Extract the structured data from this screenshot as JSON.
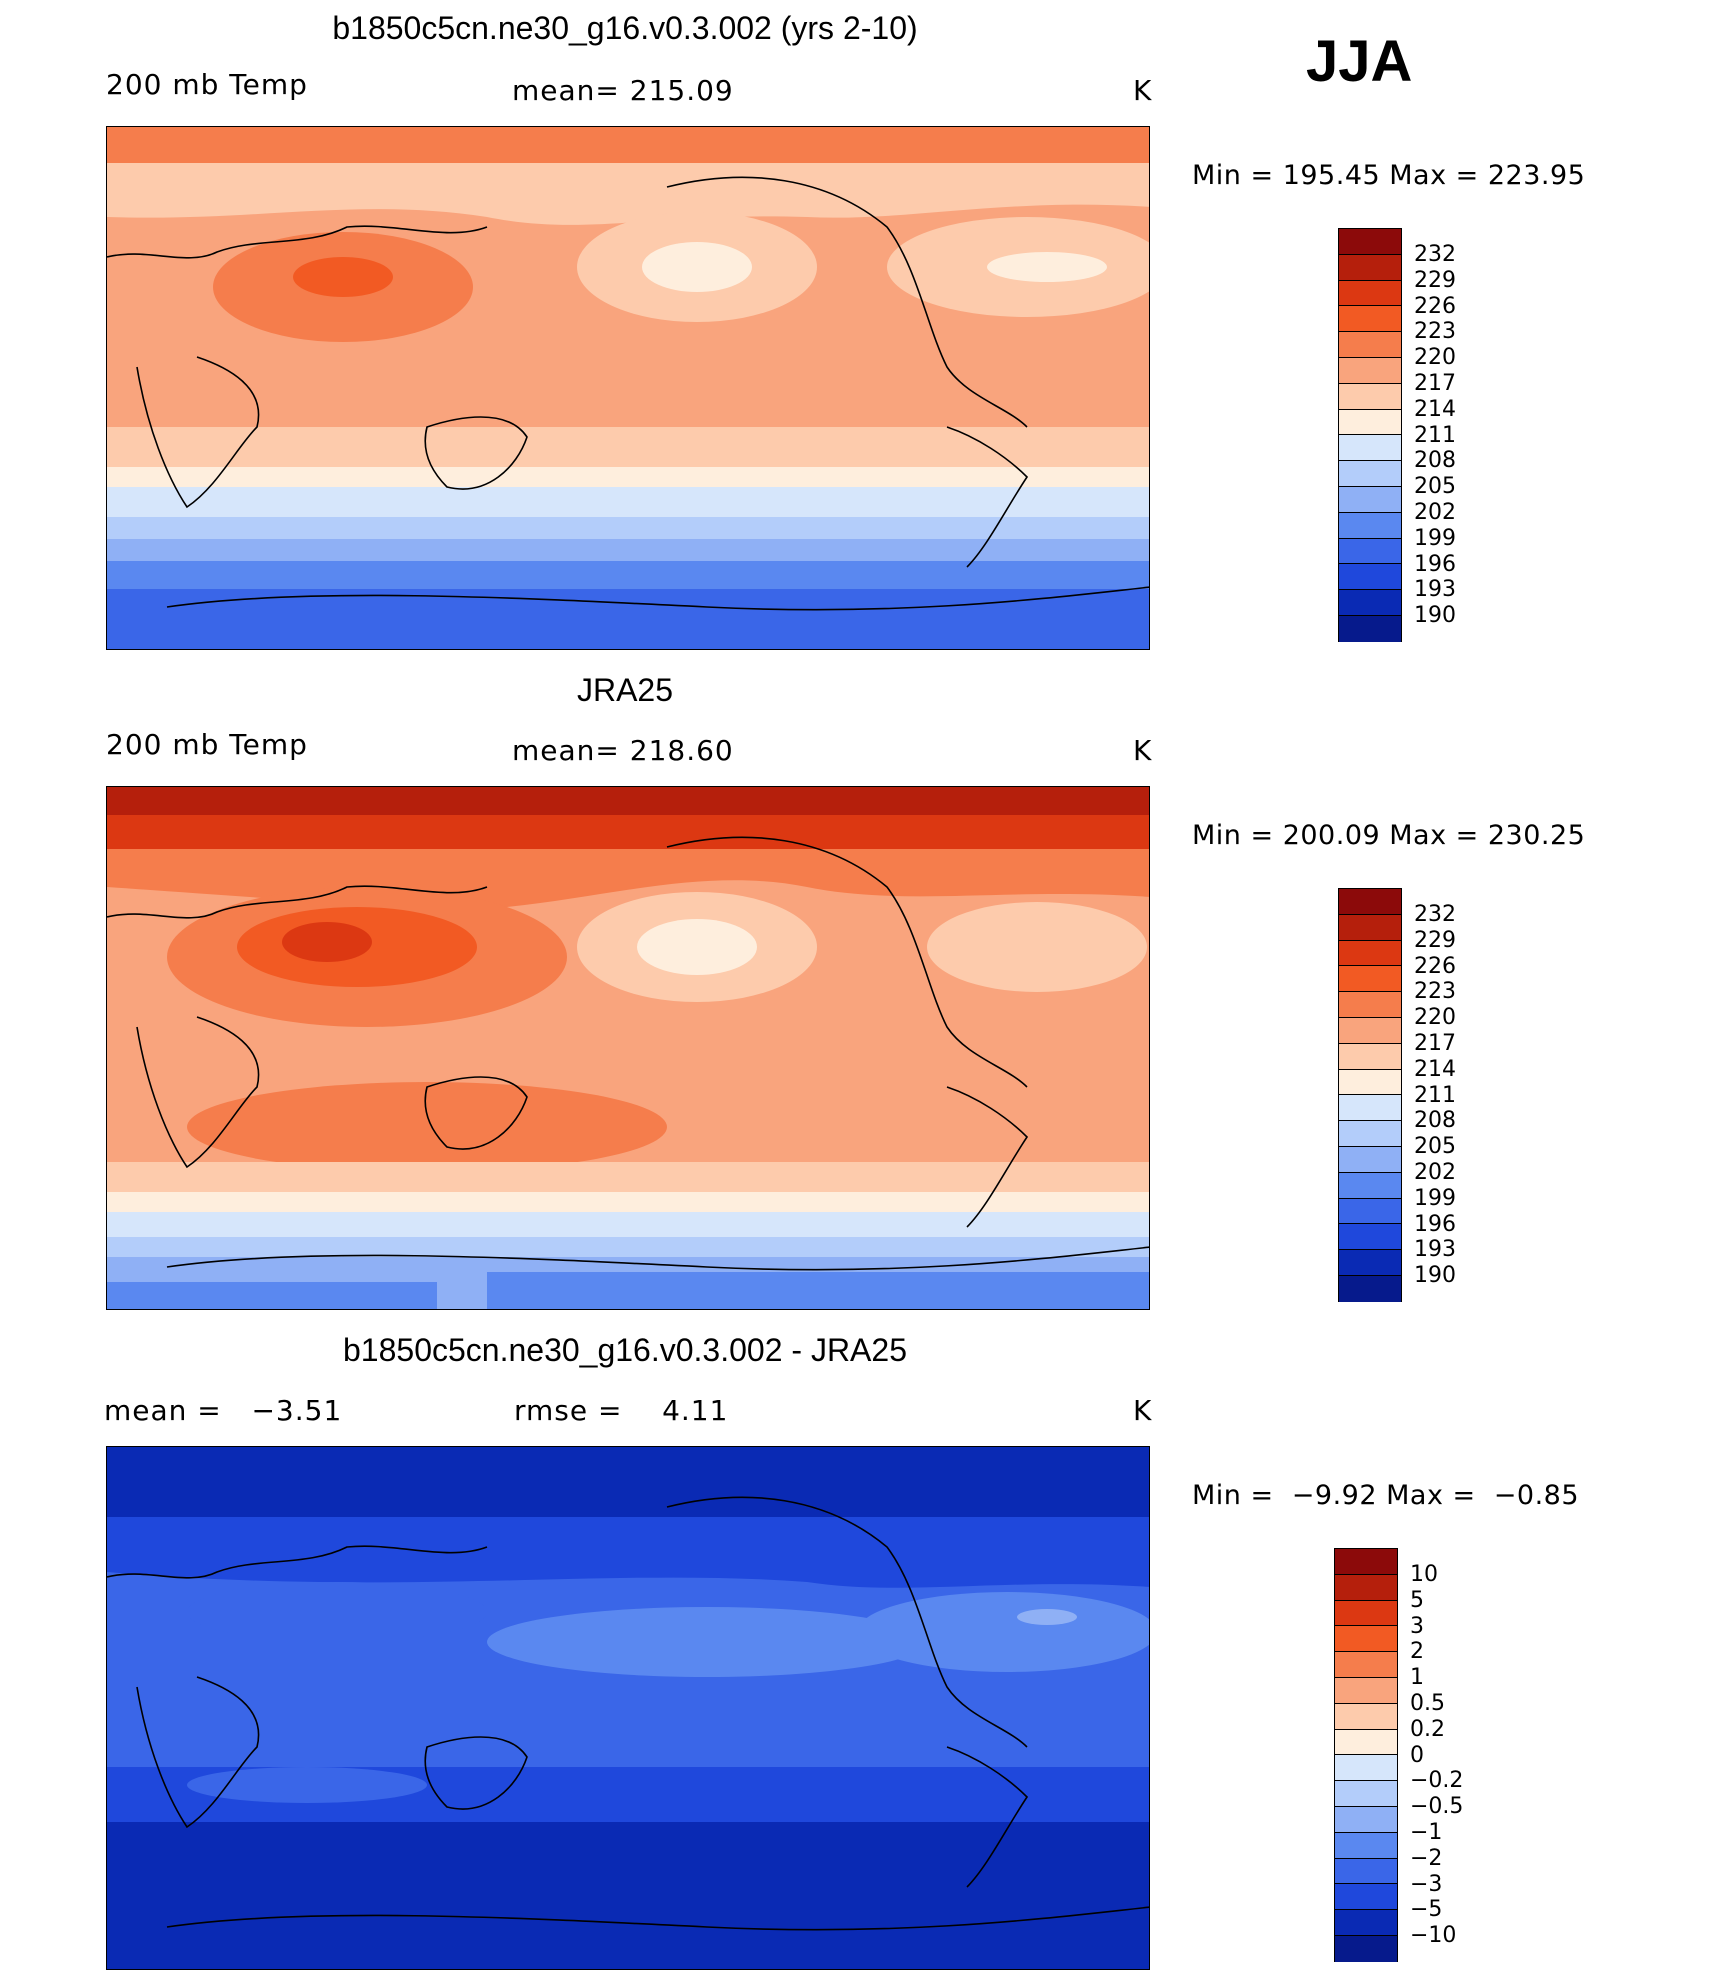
{
  "season": "JJA",
  "panels": [
    {
      "title": "b1850c5cn.ne30_g16.v0.3.002 (yrs 2-10)",
      "left": "200 mb Temp",
      "center": "mean= 215.09",
      "right": "K",
      "minmax": "Min = 195.45 Max = 223.95",
      "colorbar_labels": [
        "232",
        "229",
        "226",
        "223",
        "220",
        "217",
        "214",
        "211",
        "208",
        "205",
        "202",
        "199",
        "196",
        "193",
        "190"
      ]
    },
    {
      "title": "JRA25",
      "left": "200 mb Temp",
      "center": "mean= 218.60",
      "right": "K",
      "minmax": "Min = 200.09 Max = 230.25",
      "colorbar_labels": [
        "232",
        "229",
        "226",
        "223",
        "220",
        "217",
        "214",
        "211",
        "208",
        "205",
        "202",
        "199",
        "196",
        "193",
        "190"
      ]
    },
    {
      "title": "b1850c5cn.ne30_g16.v0.3.002 - JRA25",
      "left": "mean =   −3.51",
      "center": "rmse =    4.11",
      "right": "K",
      "minmax": "Min =  −9.92 Max =  −0.85",
      "colorbar_labels": [
        "10",
        "5",
        "3",
        "2",
        "1",
        "0.5",
        "0.2",
        "0",
        "−0.2",
        "−0.5",
        "−1",
        "−2",
        "−3",
        "−5",
        "−10"
      ]
    }
  ],
  "colors": {
    "abs_scale": [
      "#8c0a0a",
      "#b51f0c",
      "#dc3812",
      "#f25a23",
      "#f57d4c",
      "#f9a47d",
      "#fdcbac",
      "#feeedd",
      "#d6e6fb",
      "#b3cdfa",
      "#8fb0f5",
      "#5a88f0",
      "#3a66e8",
      "#1f48dc",
      "#0a2ab4",
      "#061a8c"
    ],
    "diff_scale": [
      "#8c0a0a",
      "#b51f0c",
      "#dc3812",
      "#f25a23",
      "#f57d4c",
      "#f9a47d",
      "#fdcbac",
      "#feeedd",
      "#d6e6fb",
      "#b3cdfa",
      "#8fb0f5",
      "#5a88f0",
      "#3a66e8",
      "#1f48dc",
      "#0a2ab4",
      "#061a8c"
    ]
  }
}
